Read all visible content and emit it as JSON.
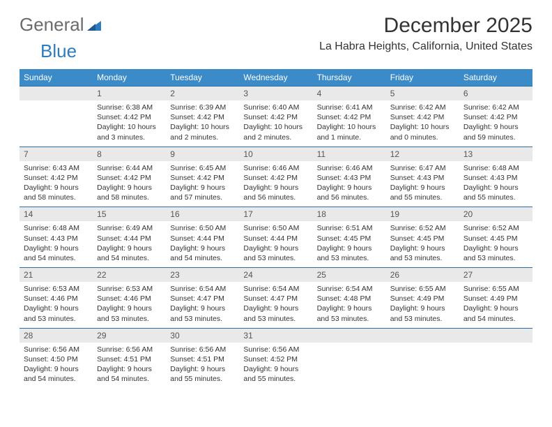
{
  "logo": {
    "part1": "General",
    "part2": "Blue"
  },
  "title": "December 2025",
  "location": "La Habra Heights, California, United States",
  "colors": {
    "header_bg": "#3b8bc8",
    "header_text": "#ffffff",
    "daynum_bg": "#e9e9e9",
    "daynum_border": "#2e6da4",
    "logo_gray": "#6b6b6b",
    "logo_blue": "#2e7cc0",
    "body_text": "#333333",
    "page_bg": "#ffffff"
  },
  "typography": {
    "title_fontsize": 30,
    "location_fontsize": 16,
    "header_fontsize": 12,
    "daynum_fontsize": 12,
    "body_fontsize": 10.5
  },
  "day_headers": [
    "Sunday",
    "Monday",
    "Tuesday",
    "Wednesday",
    "Thursday",
    "Friday",
    "Saturday"
  ],
  "weeks": [
    [
      {
        "n": "",
        "lines": [
          "",
          "",
          "",
          ""
        ]
      },
      {
        "n": "1",
        "lines": [
          "Sunrise: 6:38 AM",
          "Sunset: 4:42 PM",
          "Daylight: 10 hours",
          "and 3 minutes."
        ]
      },
      {
        "n": "2",
        "lines": [
          "Sunrise: 6:39 AM",
          "Sunset: 4:42 PM",
          "Daylight: 10 hours",
          "and 2 minutes."
        ]
      },
      {
        "n": "3",
        "lines": [
          "Sunrise: 6:40 AM",
          "Sunset: 4:42 PM",
          "Daylight: 10 hours",
          "and 2 minutes."
        ]
      },
      {
        "n": "4",
        "lines": [
          "Sunrise: 6:41 AM",
          "Sunset: 4:42 PM",
          "Daylight: 10 hours",
          "and 1 minute."
        ]
      },
      {
        "n": "5",
        "lines": [
          "Sunrise: 6:42 AM",
          "Sunset: 4:42 PM",
          "Daylight: 10 hours",
          "and 0 minutes."
        ]
      },
      {
        "n": "6",
        "lines": [
          "Sunrise: 6:42 AM",
          "Sunset: 4:42 PM",
          "Daylight: 9 hours",
          "and 59 minutes."
        ]
      }
    ],
    [
      {
        "n": "7",
        "lines": [
          "Sunrise: 6:43 AM",
          "Sunset: 4:42 PM",
          "Daylight: 9 hours",
          "and 58 minutes."
        ]
      },
      {
        "n": "8",
        "lines": [
          "Sunrise: 6:44 AM",
          "Sunset: 4:42 PM",
          "Daylight: 9 hours",
          "and 58 minutes."
        ]
      },
      {
        "n": "9",
        "lines": [
          "Sunrise: 6:45 AM",
          "Sunset: 4:42 PM",
          "Daylight: 9 hours",
          "and 57 minutes."
        ]
      },
      {
        "n": "10",
        "lines": [
          "Sunrise: 6:46 AM",
          "Sunset: 4:42 PM",
          "Daylight: 9 hours",
          "and 56 minutes."
        ]
      },
      {
        "n": "11",
        "lines": [
          "Sunrise: 6:46 AM",
          "Sunset: 4:43 PM",
          "Daylight: 9 hours",
          "and 56 minutes."
        ]
      },
      {
        "n": "12",
        "lines": [
          "Sunrise: 6:47 AM",
          "Sunset: 4:43 PM",
          "Daylight: 9 hours",
          "and 55 minutes."
        ]
      },
      {
        "n": "13",
        "lines": [
          "Sunrise: 6:48 AM",
          "Sunset: 4:43 PM",
          "Daylight: 9 hours",
          "and 55 minutes."
        ]
      }
    ],
    [
      {
        "n": "14",
        "lines": [
          "Sunrise: 6:48 AM",
          "Sunset: 4:43 PM",
          "Daylight: 9 hours",
          "and 54 minutes."
        ]
      },
      {
        "n": "15",
        "lines": [
          "Sunrise: 6:49 AM",
          "Sunset: 4:44 PM",
          "Daylight: 9 hours",
          "and 54 minutes."
        ]
      },
      {
        "n": "16",
        "lines": [
          "Sunrise: 6:50 AM",
          "Sunset: 4:44 PM",
          "Daylight: 9 hours",
          "and 54 minutes."
        ]
      },
      {
        "n": "17",
        "lines": [
          "Sunrise: 6:50 AM",
          "Sunset: 4:44 PM",
          "Daylight: 9 hours",
          "and 53 minutes."
        ]
      },
      {
        "n": "18",
        "lines": [
          "Sunrise: 6:51 AM",
          "Sunset: 4:45 PM",
          "Daylight: 9 hours",
          "and 53 minutes."
        ]
      },
      {
        "n": "19",
        "lines": [
          "Sunrise: 6:52 AM",
          "Sunset: 4:45 PM",
          "Daylight: 9 hours",
          "and 53 minutes."
        ]
      },
      {
        "n": "20",
        "lines": [
          "Sunrise: 6:52 AM",
          "Sunset: 4:45 PM",
          "Daylight: 9 hours",
          "and 53 minutes."
        ]
      }
    ],
    [
      {
        "n": "21",
        "lines": [
          "Sunrise: 6:53 AM",
          "Sunset: 4:46 PM",
          "Daylight: 9 hours",
          "and 53 minutes."
        ]
      },
      {
        "n": "22",
        "lines": [
          "Sunrise: 6:53 AM",
          "Sunset: 4:46 PM",
          "Daylight: 9 hours",
          "and 53 minutes."
        ]
      },
      {
        "n": "23",
        "lines": [
          "Sunrise: 6:54 AM",
          "Sunset: 4:47 PM",
          "Daylight: 9 hours",
          "and 53 minutes."
        ]
      },
      {
        "n": "24",
        "lines": [
          "Sunrise: 6:54 AM",
          "Sunset: 4:47 PM",
          "Daylight: 9 hours",
          "and 53 minutes."
        ]
      },
      {
        "n": "25",
        "lines": [
          "Sunrise: 6:54 AM",
          "Sunset: 4:48 PM",
          "Daylight: 9 hours",
          "and 53 minutes."
        ]
      },
      {
        "n": "26",
        "lines": [
          "Sunrise: 6:55 AM",
          "Sunset: 4:49 PM",
          "Daylight: 9 hours",
          "and 53 minutes."
        ]
      },
      {
        "n": "27",
        "lines": [
          "Sunrise: 6:55 AM",
          "Sunset: 4:49 PM",
          "Daylight: 9 hours",
          "and 54 minutes."
        ]
      }
    ],
    [
      {
        "n": "28",
        "lines": [
          "Sunrise: 6:56 AM",
          "Sunset: 4:50 PM",
          "Daylight: 9 hours",
          "and 54 minutes."
        ]
      },
      {
        "n": "29",
        "lines": [
          "Sunrise: 6:56 AM",
          "Sunset: 4:51 PM",
          "Daylight: 9 hours",
          "and 54 minutes."
        ]
      },
      {
        "n": "30",
        "lines": [
          "Sunrise: 6:56 AM",
          "Sunset: 4:51 PM",
          "Daylight: 9 hours",
          "and 55 minutes."
        ]
      },
      {
        "n": "31",
        "lines": [
          "Sunrise: 6:56 AM",
          "Sunset: 4:52 PM",
          "Daylight: 9 hours",
          "and 55 minutes."
        ]
      },
      {
        "n": "",
        "lines": [
          "",
          "",
          "",
          ""
        ]
      },
      {
        "n": "",
        "lines": [
          "",
          "",
          "",
          ""
        ]
      },
      {
        "n": "",
        "lines": [
          "",
          "",
          "",
          ""
        ]
      }
    ]
  ]
}
